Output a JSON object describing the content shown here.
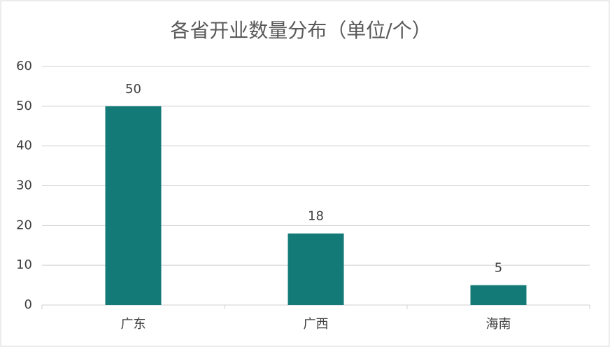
{
  "chart_data": {
    "type": "bar",
    "title": "各省开业数量分布（单位/个）",
    "categories": [
      "广东",
      "广西",
      "海南"
    ],
    "values": [
      50,
      18,
      5
    ],
    "color": "#137a77",
    "ylim": [
      0,
      60
    ],
    "yticks": [
      0,
      10,
      20,
      30,
      40,
      50,
      60
    ],
    "grid": true
  }
}
